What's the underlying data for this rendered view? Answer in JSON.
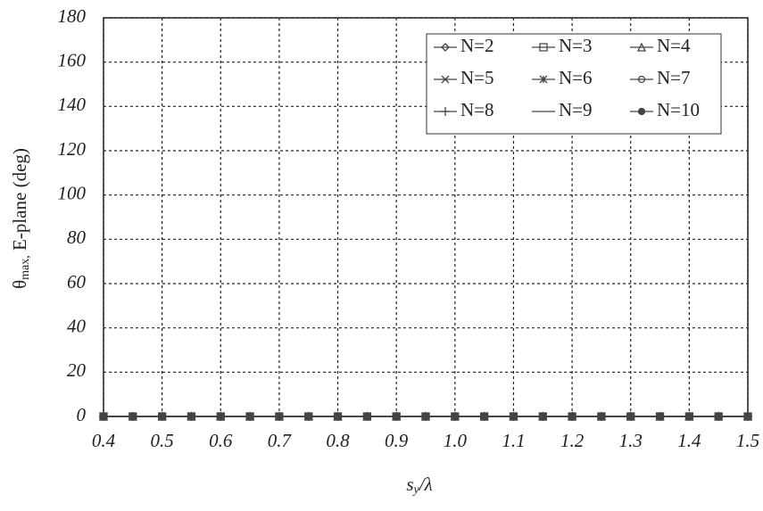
{
  "chart_data": {
    "type": "line",
    "x_label": {
      "symbol": "s",
      "subscript": "y",
      "rest": "/λ"
    },
    "y_label": {
      "symbol": "θ",
      "subscript": "max,",
      "rest": " E-plane (deg)"
    },
    "x": [
      0.4,
      0.45,
      0.5,
      0.55,
      0.6,
      0.65,
      0.7,
      0.75,
      0.8,
      0.85,
      0.9,
      0.95,
      1.0,
      1.05,
      1.1,
      1.15,
      1.2,
      1.25,
      1.3,
      1.35,
      1.4,
      1.45,
      1.5
    ],
    "xlim": [
      0.4,
      1.5
    ],
    "xticks": [
      0.4,
      0.5,
      0.6,
      0.7,
      0.8,
      0.9,
      {
        "value": 1,
        "label": "1.0"
      },
      1.1,
      1.2,
      1.3,
      1.4,
      1.5
    ],
    "ylim": [
      0,
      180
    ],
    "yticks": [
      0,
      20,
      40,
      60,
      80,
      100,
      120,
      140,
      160,
      180
    ],
    "grid": true,
    "legend_position": "upper-right",
    "series": [
      {
        "name": "N=2",
        "color": "#444444",
        "marker": "diamond",
        "values": [
          0,
          0,
          0,
          0,
          0,
          0,
          0,
          0,
          0,
          0,
          0,
          0,
          0,
          0,
          0,
          0,
          0,
          0,
          0,
          0,
          0,
          0,
          0
        ]
      },
      {
        "name": "N=3",
        "color": "#444444",
        "marker": "square",
        "values": [
          0,
          0,
          0,
          0,
          0,
          0,
          0,
          0,
          0,
          0,
          0,
          0,
          0,
          0,
          0,
          0,
          0,
          0,
          0,
          0,
          0,
          0,
          0
        ]
      },
      {
        "name": "N=4",
        "color": "#444444",
        "marker": "triangle",
        "values": [
          0,
          0,
          0,
          0,
          0,
          0,
          0,
          0,
          0,
          0,
          0,
          0,
          0,
          0,
          0,
          0,
          0,
          0,
          0,
          0,
          0,
          0,
          0
        ]
      },
      {
        "name": "N=5",
        "color": "#444444",
        "marker": "x",
        "values": [
          0,
          0,
          0,
          0,
          0,
          0,
          0,
          0,
          0,
          0,
          0,
          0,
          0,
          0,
          0,
          0,
          0,
          0,
          0,
          0,
          0,
          0,
          0
        ]
      },
      {
        "name": "N=6",
        "color": "#444444",
        "marker": "asterisk",
        "values": [
          0,
          0,
          0,
          0,
          0,
          0,
          0,
          0,
          0,
          0,
          0,
          0,
          0,
          0,
          0,
          0,
          0,
          0,
          0,
          0,
          0,
          0,
          0
        ]
      },
      {
        "name": "N=7",
        "color": "#444444",
        "marker": "circle",
        "values": [
          0,
          0,
          0,
          0,
          0,
          0,
          0,
          0,
          0,
          0,
          0,
          0,
          0,
          0,
          0,
          0,
          0,
          0,
          0,
          0,
          0,
          0,
          0
        ]
      },
      {
        "name": "N=8",
        "color": "#444444",
        "marker": "plus",
        "values": [
          0,
          0,
          0,
          0,
          0,
          0,
          0,
          0,
          0,
          0,
          0,
          0,
          0,
          0,
          0,
          0,
          0,
          0,
          0,
          0,
          0,
          0,
          0
        ]
      },
      {
        "name": "N=9",
        "color": "#444444",
        "marker": "none",
        "values": [
          0,
          0,
          0,
          0,
          0,
          0,
          0,
          0,
          0,
          0,
          0,
          0,
          0,
          0,
          0,
          0,
          0,
          0,
          0,
          0,
          0,
          0,
          0
        ]
      },
      {
        "name": "N=10",
        "color": "#444444",
        "marker": "dot",
        "values": [
          0,
          0,
          0,
          0,
          0,
          0,
          0,
          0,
          0,
          0,
          0,
          0,
          0,
          0,
          0,
          0,
          0,
          0,
          0,
          0,
          0,
          0,
          0
        ]
      }
    ]
  }
}
